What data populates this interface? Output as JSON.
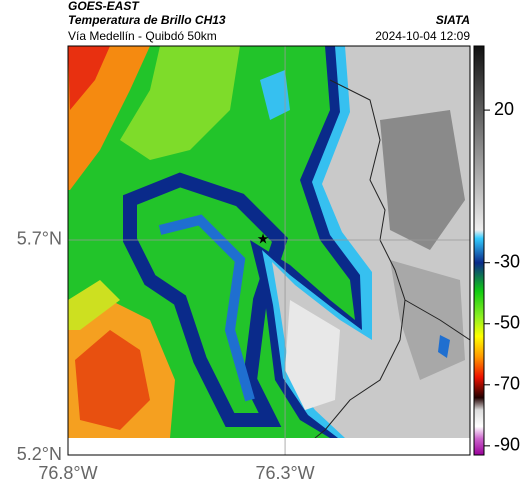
{
  "header": {
    "source": "GOES-EAST",
    "product": "Temperatura de Brillo CH13",
    "route": "Vía Medellín - Quibdó 50km",
    "org": "SIATA",
    "timestamp": "2024-10-04 12:09"
  },
  "map": {
    "xlim": [
      -76.8,
      -75.874
    ],
    "ylim": [
      5.2,
      6.151
    ],
    "xticks": [
      {
        "value": -76.8,
        "label": "76.8°W"
      },
      {
        "value": -76.3,
        "label": "76.3°W"
      }
    ],
    "yticks": [
      {
        "value": 5.7,
        "label": "5.7°N"
      },
      {
        "value": 5.2,
        "label": "5.2°N"
      }
    ],
    "grid": true
  },
  "colorbar": {
    "lim": [
      -93,
      41
    ],
    "ticks": [
      20,
      -30,
      -50,
      -70,
      -90
    ]
  }
}
